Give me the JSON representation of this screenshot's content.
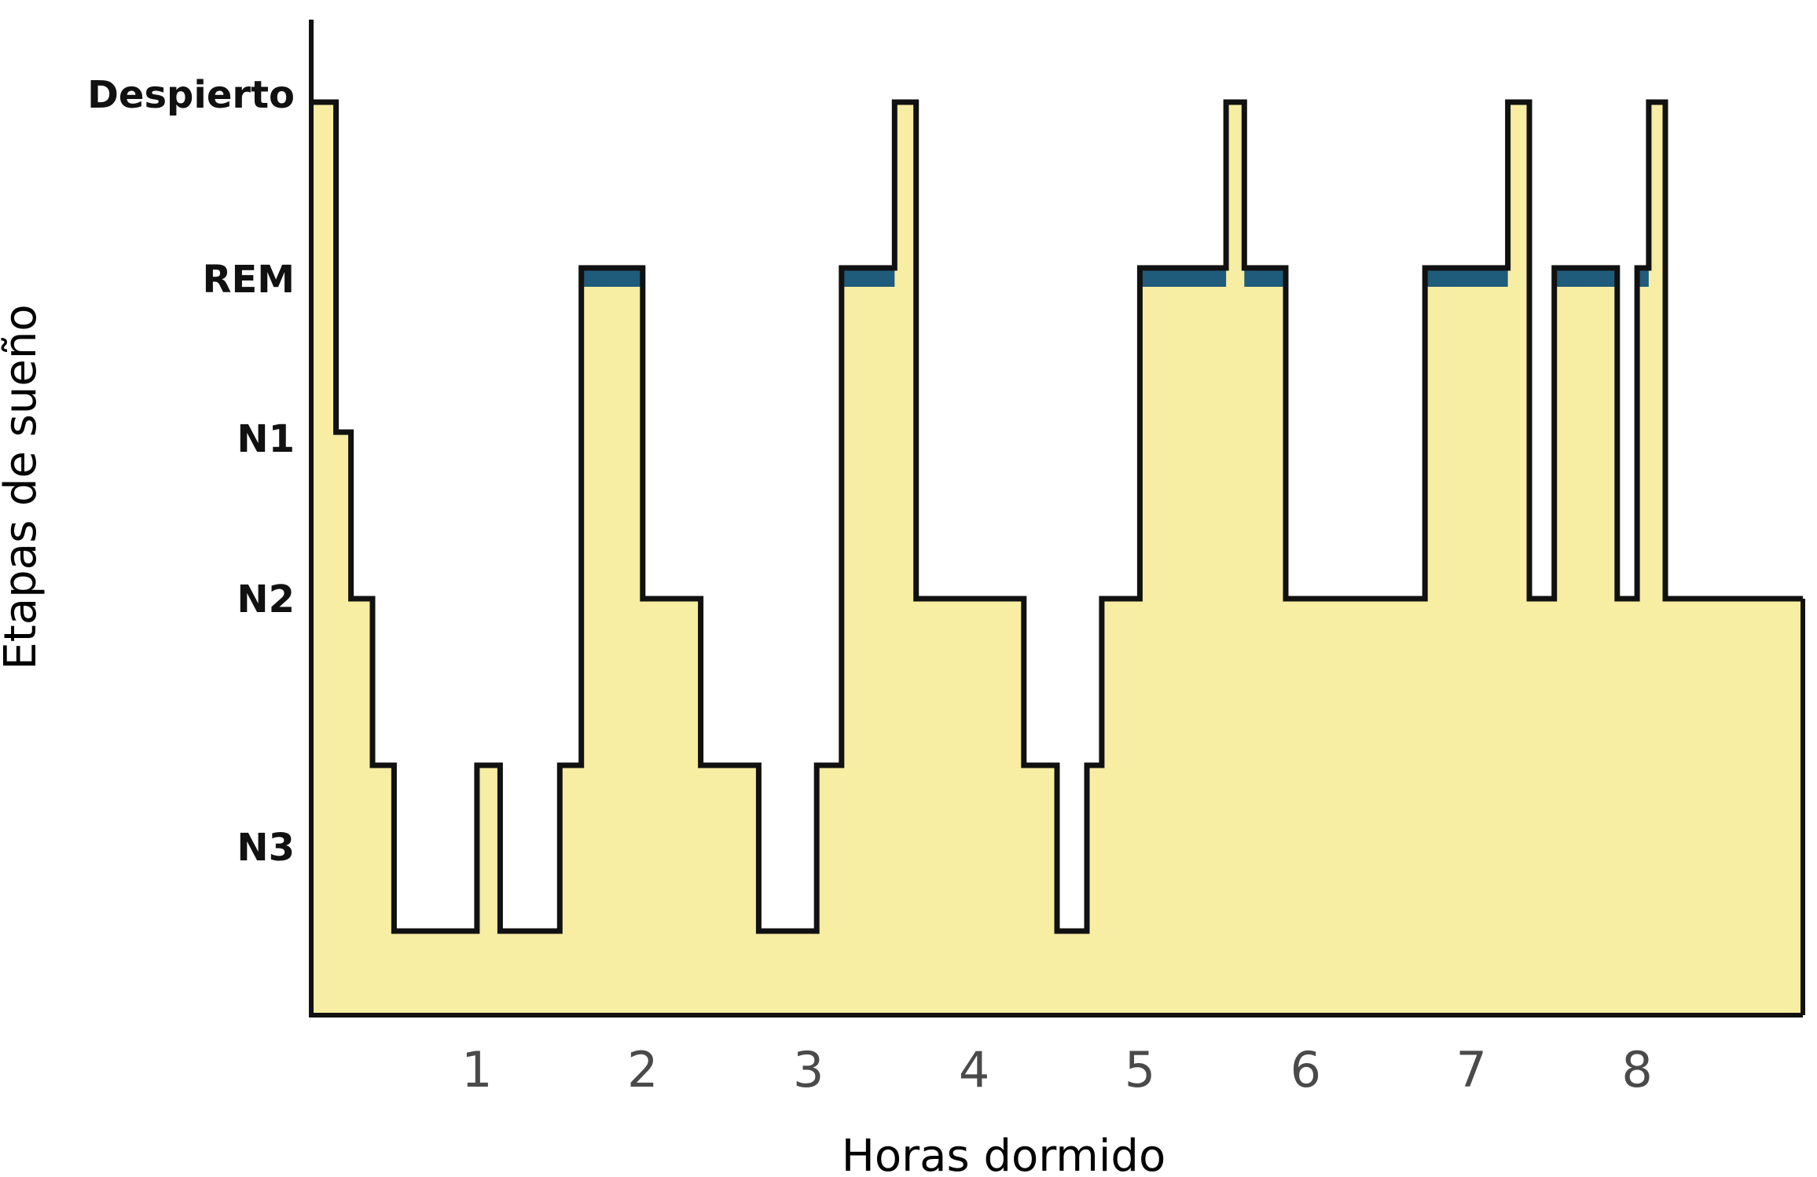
{
  "chart_data": {
    "type": "area",
    "xlabel": "Horas dormido",
    "ylabel": "Etapas de sueño",
    "stages": [
      "Despierto",
      "REM",
      "N1",
      "N2",
      "N3"
    ],
    "xticks": [
      1,
      2,
      3,
      4,
      5,
      6,
      7,
      8
    ],
    "xlim": [
      0,
      9.0
    ],
    "grid": false,
    "colors": {
      "fill": "#f7eda3",
      "line": "#111111",
      "rem": "#1f5b7a"
    },
    "hypnogram": [
      {
        "x": 0.0,
        "stage": "Despierto"
      },
      {
        "x": 0.15,
        "stage": "N1"
      },
      {
        "x": 0.24,
        "stage": "N2"
      },
      {
        "x": 0.37,
        "stage": "N3-light"
      },
      {
        "x": 0.5,
        "stage": "N3"
      },
      {
        "x": 1.0,
        "stage": "N3-light"
      },
      {
        "x": 1.14,
        "stage": "N3"
      },
      {
        "x": 1.5,
        "stage": "N3-light"
      },
      {
        "x": 1.63,
        "stage": "REM"
      },
      {
        "x": 2.0,
        "stage": "N2"
      },
      {
        "x": 2.35,
        "stage": "N3-light"
      },
      {
        "x": 2.7,
        "stage": "N3"
      },
      {
        "x": 3.05,
        "stage": "N3-light"
      },
      {
        "x": 3.2,
        "stage": "REM"
      },
      {
        "x": 3.52,
        "stage": "Despierto"
      },
      {
        "x": 3.65,
        "stage": "N2"
      },
      {
        "x": 4.3,
        "stage": "N3-light"
      },
      {
        "x": 4.5,
        "stage": "N3"
      },
      {
        "x": 4.68,
        "stage": "N3-light"
      },
      {
        "x": 4.77,
        "stage": "N2"
      },
      {
        "x": 5.0,
        "stage": "REM"
      },
      {
        "x": 5.52,
        "stage": "Despierto"
      },
      {
        "x": 5.63,
        "stage": "REM"
      },
      {
        "x": 5.88,
        "stage": "N2"
      },
      {
        "x": 6.72,
        "stage": "REM"
      },
      {
        "x": 7.22,
        "stage": "Despierto"
      },
      {
        "x": 7.35,
        "stage": "N2"
      },
      {
        "x": 7.5,
        "stage": "REM"
      },
      {
        "x": 7.88,
        "stage": "N2"
      },
      {
        "x": 8.0,
        "stage": "REM"
      },
      {
        "x": 8.07,
        "stage": "Despierto"
      },
      {
        "x": 8.17,
        "stage": "N2"
      },
      {
        "x": 9.0,
        "stage": "end"
      }
    ],
    "rem_periods": [
      [
        1.63,
        2.0
      ],
      [
        3.2,
        3.52
      ],
      [
        5.0,
        5.52
      ],
      [
        5.63,
        5.88
      ],
      [
        6.72,
        7.22
      ],
      [
        7.5,
        7.88
      ],
      [
        8.0,
        8.07
      ]
    ]
  }
}
